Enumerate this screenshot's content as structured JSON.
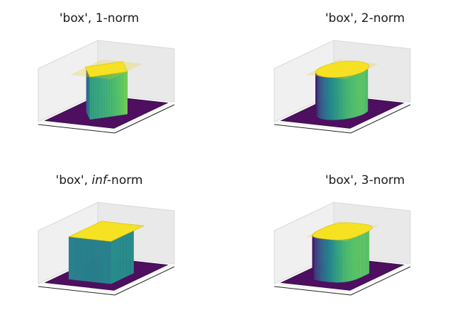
{
  "chart_data": [
    {
      "type": "surface3d",
      "title": {
        "pre": "'box', ",
        "em": "",
        "post": "1-norm"
      },
      "title_text": "'box', 1-norm",
      "norm": "1",
      "kernel": "box",
      "z_range": [
        0,
        1
      ],
      "colormap": "viridis",
      "grid": true
    },
    {
      "type": "surface3d",
      "title": {
        "pre": "'box', ",
        "em": "",
        "post": "2-norm"
      },
      "title_text": "'box', 2-norm",
      "norm": "2",
      "kernel": "box",
      "z_range": [
        0,
        1
      ],
      "colormap": "viridis",
      "grid": true
    },
    {
      "type": "surface3d",
      "title": {
        "pre": "'box', ",
        "em": "inf",
        "post": "-norm"
      },
      "title_text": "'box', inf-norm",
      "norm": "inf",
      "kernel": "box",
      "z_range": [
        0,
        1
      ],
      "colormap": "viridis",
      "grid": true
    },
    {
      "type": "surface3d",
      "title": {
        "pre": "'box', ",
        "em": "",
        "post": "3-norm"
      },
      "title_text": "'box', 3-norm",
      "norm": "3",
      "kernel": "box",
      "z_range": [
        0,
        1
      ],
      "colormap": "viridis",
      "grid": true
    }
  ],
  "colors": {
    "base": "#440154",
    "top": "#fde725",
    "mid": "#21918c",
    "pane": "#f2f2f2",
    "edge": "#222222"
  }
}
